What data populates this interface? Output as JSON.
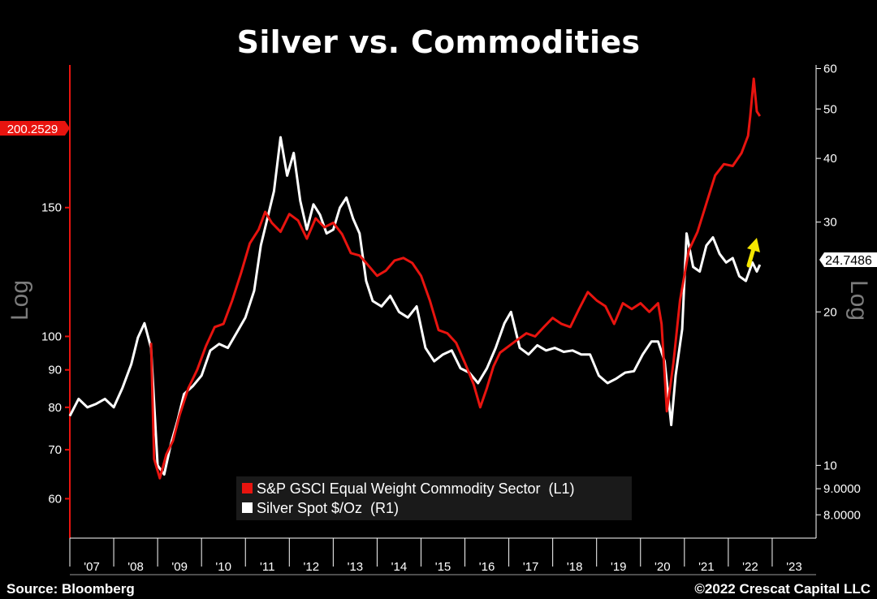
{
  "title": "Silver vs. Commodities",
  "source": "Source: Bloomberg",
  "copyright": "©2022 Crescat Capital LLC",
  "colors": {
    "background": "#000000",
    "commodity": "#e8140f",
    "silver": "#ffffff",
    "arrow": "#f5e600",
    "axis_label": "#7c7c7c"
  },
  "chart_data": {
    "type": "line",
    "x_ticks": [
      "'07",
      "'08",
      "'09",
      "'10",
      "'11",
      "'12",
      "'13",
      "'14",
      "'15",
      "'16",
      "'17",
      "'18",
      "'19",
      "'20",
      "'21",
      "'22",
      "'23"
    ],
    "x_range": [
      2006.5,
      2023.5
    ],
    "left_axis": {
      "label": "Log",
      "scale": "log",
      "ylim": [
        53,
        235
      ],
      "ticks": [
        "60",
        "70",
        "80",
        "90",
        "100",
        "150"
      ],
      "last_value": "200.2529"
    },
    "right_axis": {
      "label": "Log",
      "scale": "log",
      "ylim": [
        7.2,
        61
      ],
      "ticks": [
        "10",
        "20",
        "30",
        "40",
        "50",
        "60"
      ],
      "ticks_minor": [
        "9.0000",
        "8.0000"
      ],
      "last_value": "24.7486"
    },
    "legend": [
      "S&P GSCI Equal Weight Commodity Sector  (L1)",
      "Silver Spot $/Oz  (R1)"
    ],
    "annotation": "yellow up arrow",
    "series": [
      {
        "name": "S&P GSCI Equal Weight Commodity Sector  (L1)",
        "axis": "left",
        "x": [
          2008.35,
          2008.42,
          2008.55,
          2008.7,
          2008.85,
          2009.0,
          2009.2,
          2009.4,
          2009.6,
          2009.8,
          2010.0,
          2010.2,
          2010.4,
          2010.6,
          2010.8,
          2010.95,
          2011.1,
          2011.3,
          2011.5,
          2011.7,
          2011.9,
          2012.1,
          2012.3,
          2012.5,
          2012.7,
          2012.9,
          2013.1,
          2013.3,
          2013.5,
          2013.7,
          2013.9,
          2014.1,
          2014.3,
          2014.5,
          2014.7,
          2014.9,
          2015.1,
          2015.3,
          2015.5,
          2015.7,
          2015.85,
          2016.0,
          2016.15,
          2016.3,
          2016.5,
          2016.7,
          2016.9,
          2017.1,
          2017.3,
          2017.5,
          2017.7,
          2017.9,
          2018.1,
          2018.3,
          2018.5,
          2018.7,
          2018.9,
          2019.1,
          2019.3,
          2019.5,
          2019.7,
          2019.9,
          2019.98,
          2020.1,
          2020.25,
          2020.4,
          2020.6,
          2020.8,
          2021.0,
          2021.2,
          2021.4,
          2021.6,
          2021.8,
          2021.95,
          2022.0,
          2022.08,
          2022.15,
          2022.22
        ],
        "y": [
          98,
          68,
          64,
          69,
          72,
          78,
          85,
          90,
          97,
          103,
          104,
          112,
          122,
          134,
          140,
          148,
          143,
          139,
          147,
          144,
          136,
          145,
          141,
          143,
          138,
          130,
          129,
          125,
          121,
          123,
          127,
          128,
          126,
          121,
          112,
          102,
          101,
          98,
          92,
          86,
          80,
          85,
          91,
          95,
          97,
          99,
          101,
          100,
          103,
          106,
          104,
          103,
          109,
          115,
          112,
          110,
          104,
          111,
          109,
          111,
          108,
          111,
          104,
          79,
          92,
          112,
          131,
          139,
          152,
          166,
          172,
          171,
          178,
          188,
          200,
          225,
          203,
          200
        ]
      },
      {
        "name": "Silver Spot $/Oz  (R1)",
        "axis": "right",
        "x": [
          2006.5,
          2006.7,
          2006.9,
          2007.1,
          2007.3,
          2007.5,
          2007.7,
          2007.9,
          2008.05,
          2008.2,
          2008.35,
          2008.5,
          2008.65,
          2008.8,
          2008.95,
          2009.1,
          2009.3,
          2009.5,
          2009.7,
          2009.9,
          2010.1,
          2010.3,
          2010.5,
          2010.7,
          2010.85,
          2011.0,
          2011.15,
          2011.3,
          2011.45,
          2011.6,
          2011.75,
          2011.9,
          2012.05,
          2012.2,
          2012.35,
          2012.5,
          2012.65,
          2012.8,
          2012.95,
          2013.1,
          2013.25,
          2013.4,
          2013.6,
          2013.8,
          2014.0,
          2014.2,
          2014.4,
          2014.6,
          2014.8,
          2015.0,
          2015.2,
          2015.4,
          2015.6,
          2015.8,
          2016.0,
          2016.2,
          2016.4,
          2016.55,
          2016.75,
          2016.95,
          2017.15,
          2017.35,
          2017.55,
          2017.75,
          2017.95,
          2018.15,
          2018.35,
          2018.55,
          2018.75,
          2018.95,
          2019.15,
          2019.35,
          2019.55,
          2019.75,
          2019.9,
          2020.05,
          2020.2,
          2020.3,
          2020.45,
          2020.55,
          2020.7,
          2020.85,
          2021.0,
          2021.15,
          2021.3,
          2021.45,
          2021.6,
          2021.75,
          2021.9,
          2022.05,
          2022.15,
          2022.22
        ],
        "y": [
          12.5,
          13.5,
          13.0,
          13.2,
          13.5,
          13.0,
          14.2,
          15.8,
          17.8,
          19.0,
          17.0,
          10.0,
          9.6,
          11.0,
          12.2,
          13.8,
          14.3,
          15.0,
          16.8,
          17.3,
          17.0,
          18.2,
          19.5,
          22.0,
          27.0,
          30.5,
          34.5,
          44.0,
          37.0,
          41.0,
          33.0,
          29.0,
          32.5,
          31.0,
          28.5,
          29.0,
          32.0,
          33.5,
          30.5,
          28.5,
          23.0,
          21.0,
          20.5,
          21.5,
          20.0,
          19.5,
          20.5,
          17.0,
          16.0,
          16.5,
          16.8,
          15.5,
          15.2,
          14.5,
          15.5,
          17.0,
          19.0,
          20.0,
          17.0,
          16.5,
          17.2,
          16.8,
          17.0,
          16.7,
          16.8,
          16.5,
          16.5,
          15.0,
          14.5,
          14.8,
          15.2,
          15.3,
          16.5,
          17.5,
          17.5,
          16.0,
          12.0,
          15.0,
          18.5,
          28.5,
          24.5,
          24.0,
          27.0,
          28.0,
          26.0,
          25.0,
          25.5,
          23.5,
          23.0,
          25.0,
          24.0,
          24.75
        ]
      }
    ]
  }
}
